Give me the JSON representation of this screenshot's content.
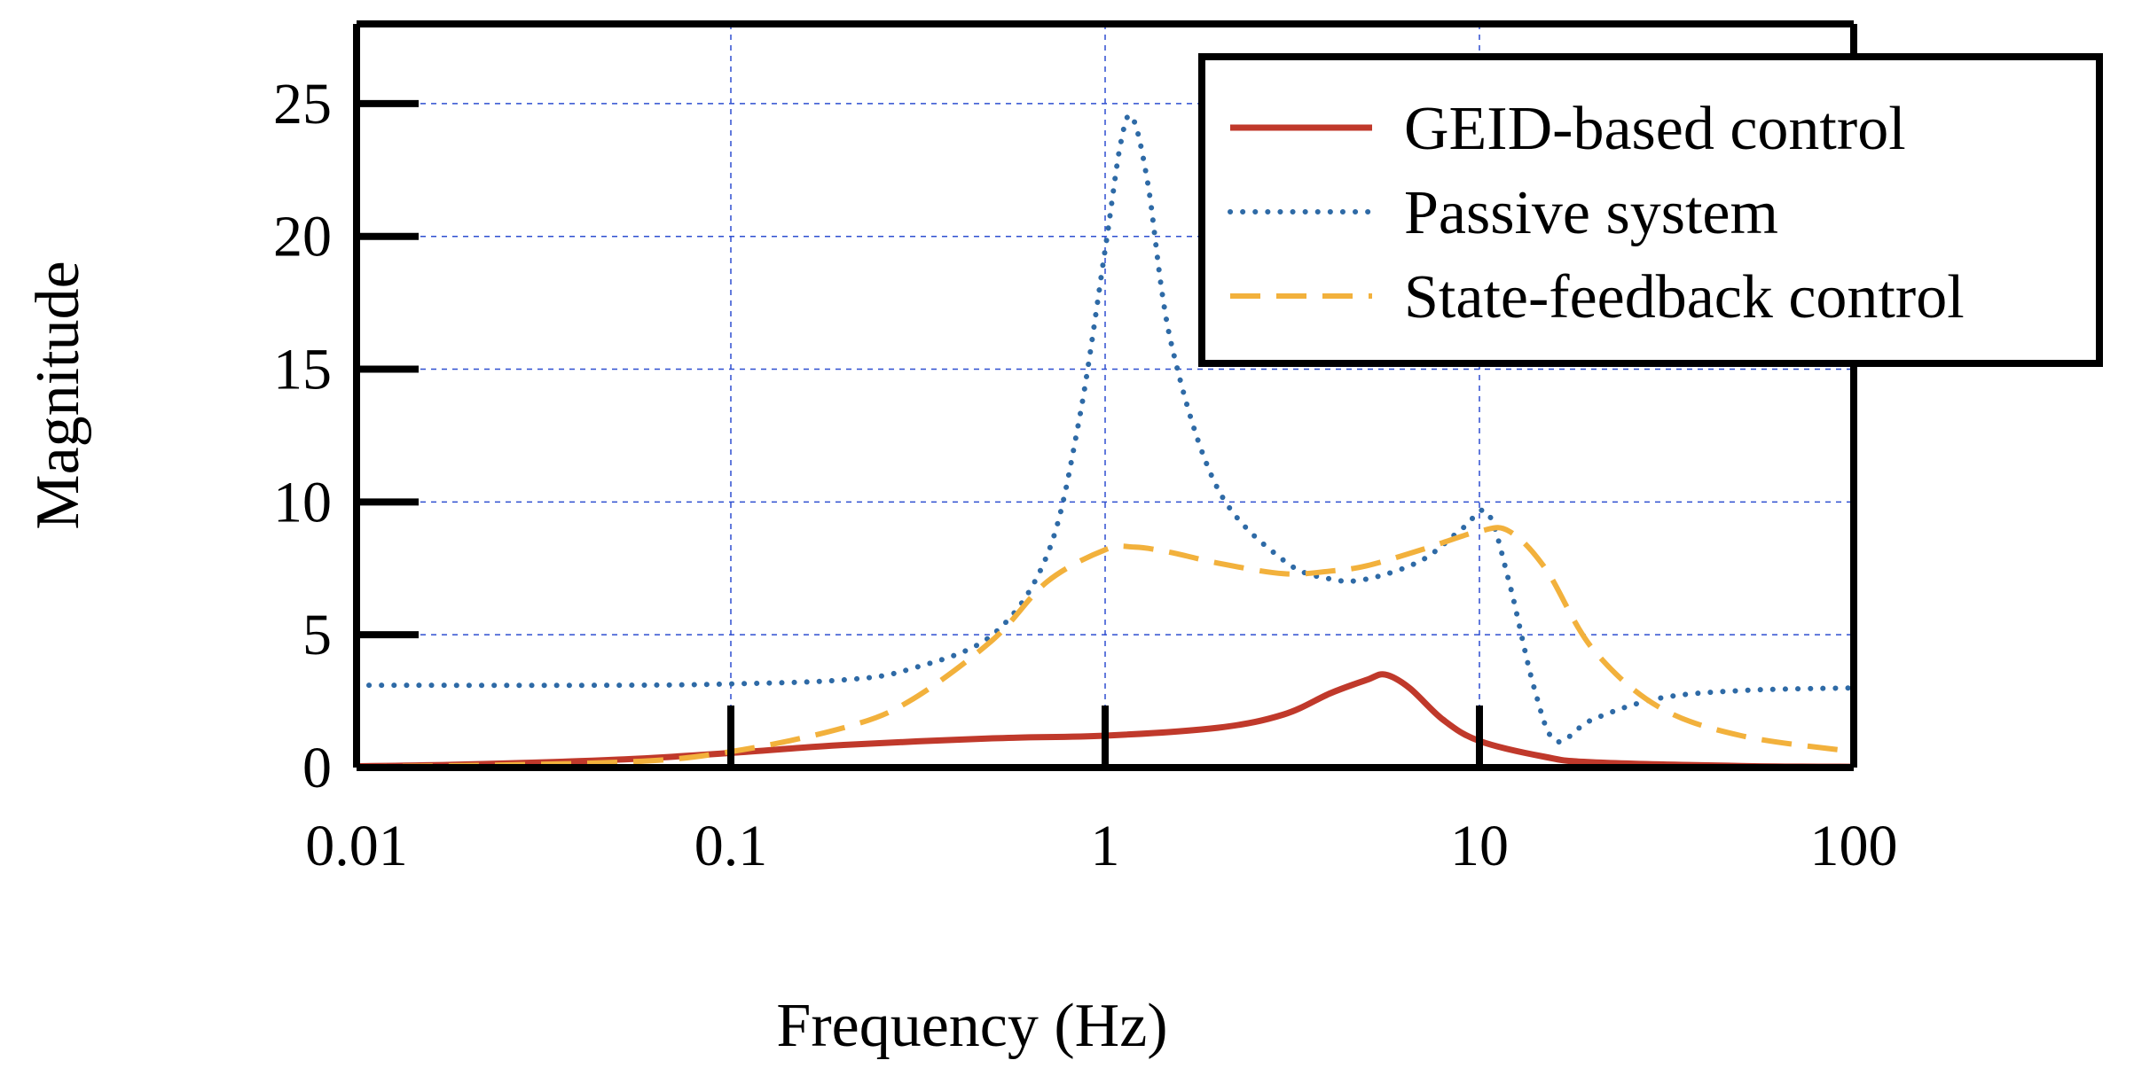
{
  "chart_data": {
    "type": "line",
    "title": "",
    "xlabel": "Frequency (Hz)",
    "ylabel": "Magnitude",
    "xscale": "log",
    "xlim": [
      0.01,
      100
    ],
    "ylim": [
      0,
      28
    ],
    "xticks": [
      0.01,
      0.1,
      1,
      10,
      100
    ],
    "xtick_labels": [
      "0.01",
      "0.1",
      "1",
      "10",
      "100"
    ],
    "yticks": [
      0,
      5,
      10,
      15,
      20,
      25
    ],
    "ytick_labels": [
      "0",
      "5",
      "10",
      "15",
      "20",
      "25"
    ],
    "grid": true,
    "legend_position": "top-right",
    "series": [
      {
        "name": "GEID-based control",
        "color": "#c0392b",
        "style": "solid",
        "x": [
          0.01,
          0.02,
          0.05,
          0.1,
          0.2,
          0.5,
          1,
          2,
          3,
          4,
          5,
          5.6,
          6.5,
          8,
          10,
          15,
          20,
          50,
          100
        ],
        "y": [
          0.05,
          0.12,
          0.3,
          0.55,
          0.85,
          1.1,
          1.2,
          1.5,
          2.0,
          2.8,
          3.3,
          3.5,
          3.0,
          1.8,
          1.0,
          0.4,
          0.2,
          0.06,
          0.03
        ]
      },
      {
        "name": "Passive system",
        "color": "#2e6aa6",
        "style": "dotted",
        "x": [
          0.01,
          0.05,
          0.1,
          0.2,
          0.3,
          0.5,
          0.7,
          0.85,
          1,
          1.1,
          1.18,
          1.3,
          1.5,
          2,
          3,
          4,
          5,
          7,
          9,
          10.5,
          12,
          14,
          16,
          20,
          30,
          50,
          100
        ],
        "y": [
          3.1,
          3.1,
          3.15,
          3.3,
          3.7,
          5.0,
          8.0,
          13.0,
          19.5,
          23.5,
          24.5,
          22.0,
          16.0,
          10.5,
          7.8,
          7.1,
          7.1,
          7.8,
          9.0,
          9.6,
          7.0,
          3.0,
          1.0,
          1.8,
          2.6,
          2.9,
          3.0
        ]
      },
      {
        "name": "State-feedback control",
        "color": "#f2b13c",
        "style": "dashed",
        "x": [
          0.01,
          0.05,
          0.1,
          0.2,
          0.3,
          0.5,
          0.7,
          1,
          1.2,
          1.5,
          2,
          3,
          4,
          5,
          7,
          10,
          12,
          15,
          20,
          30,
          50,
          100
        ],
        "y": [
          0.02,
          0.2,
          0.6,
          1.5,
          2.5,
          4.8,
          7.0,
          8.2,
          8.3,
          8.1,
          7.7,
          7.3,
          7.4,
          7.6,
          8.2,
          8.9,
          8.9,
          7.5,
          4.5,
          2.3,
          1.2,
          0.6
        ]
      }
    ]
  }
}
